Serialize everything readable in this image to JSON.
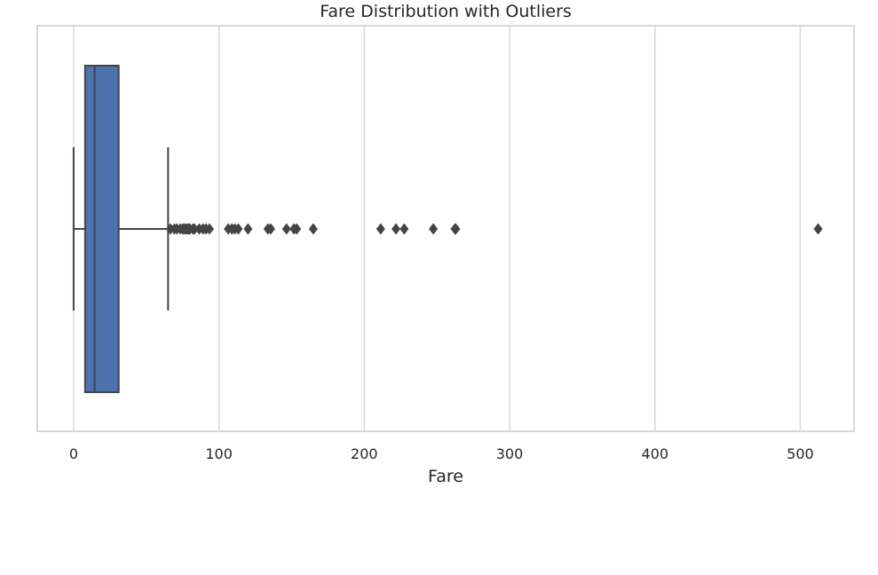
{
  "chart_data": {
    "type": "boxplot",
    "orientation": "horizontal",
    "title": "Fare Distribution with Outliers",
    "xlabel": "Fare",
    "ylabel": "",
    "xlim": [
      -25,
      537
    ],
    "xticks": [
      0,
      100,
      200,
      300,
      400,
      500
    ],
    "xtick_labels": [
      "0",
      "100",
      "200",
      "300",
      "400",
      "500"
    ],
    "grid": "vertical",
    "legend": "none",
    "box_color": "#4c72b0",
    "line_color": "#444444",
    "grid_color": "#d9d9d9",
    "boxplot": {
      "whisker_low": 0,
      "q1": 7.9,
      "median": 14.45,
      "q3": 31.0,
      "whisker_high": 65.0
    },
    "outliers": [
      66.6,
      69.3,
      71.0,
      73.5,
      75.25,
      76.3,
      77.3,
      78.3,
      79.2,
      80.0,
      82.2,
      83.2,
      86.5,
      89.1,
      91.1,
      93.5,
      106.4,
      108.9,
      110.9,
      113.3,
      120.0,
      133.7,
      135.6,
      146.5,
      151.6,
      153.5,
      164.9,
      211.3,
      221.8,
      227.5,
      247.5,
      262.4,
      263.0,
      512.3
    ]
  }
}
